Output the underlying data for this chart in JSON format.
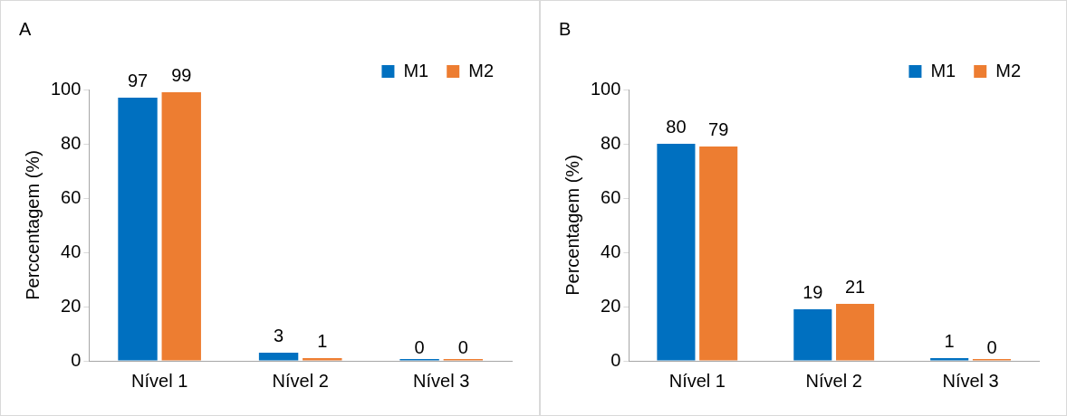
{
  "chart_data": [
    {
      "type": "bar",
      "title": "A",
      "ylabel": "Perccentagem (%)",
      "categories": [
        "Nível 1",
        "Nível 2",
        "Nível 3"
      ],
      "series": [
        {
          "name": "M1",
          "color": "#0070c0",
          "values": [
            97,
            3,
            0
          ]
        },
        {
          "name": "M2",
          "color": "#ed7d31",
          "values": [
            99,
            1,
            0
          ]
        }
      ],
      "ylim": [
        0,
        100
      ],
      "yticks": [
        0,
        20,
        40,
        60,
        80,
        100
      ],
      "grid": false,
      "legend": "top right",
      "data_labels": true
    },
    {
      "type": "bar",
      "title": "B",
      "ylabel": "Percentagem (%)",
      "categories": [
        "Nível 1",
        "Nível 2",
        "Nível 3"
      ],
      "series": [
        {
          "name": "M1",
          "color": "#0070c0",
          "values": [
            80,
            19,
            1
          ]
        },
        {
          "name": "M2",
          "color": "#ed7d31",
          "values": [
            79,
            21,
            0
          ]
        }
      ],
      "ylim": [
        0,
        100
      ],
      "yticks": [
        0,
        20,
        40,
        60,
        80,
        100
      ],
      "grid": false,
      "legend": "top right",
      "data_labels": true
    }
  ]
}
